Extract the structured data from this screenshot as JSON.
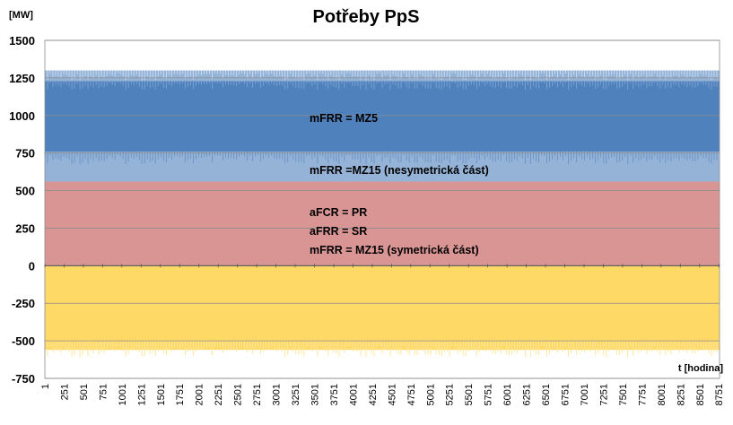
{
  "chart_data": {
    "type": "area",
    "title": "Potřeby PpS",
    "ylabel": "[MW]",
    "xlabel": "t [hodina]",
    "ylim": [
      -750,
      1500
    ],
    "yticks": [
      1500,
      1250,
      1000,
      750,
      500,
      250,
      0,
      -250,
      -500,
      -750
    ],
    "xlim": [
      1,
      8760
    ],
    "xticks": [
      "1",
      "251",
      "501",
      "751",
      "1001",
      "1251",
      "1501",
      "1751",
      "2001",
      "2251",
      "2501",
      "2751",
      "3001",
      "3251",
      "3501",
      "3751",
      "4001",
      "4251",
      "4501",
      "4751",
      "5001",
      "5251",
      "5501",
      "5751",
      "6001",
      "6251",
      "6501",
      "6751",
      "7001",
      "7251",
      "7501",
      "7751",
      "8001",
      "8251",
      "8501",
      "8751"
    ],
    "grid": true,
    "series": [
      {
        "key": "symetricka",
        "lower": 0,
        "upper": 560,
        "color": "#d99594"
      },
      {
        "key": "nesymetricka",
        "lower": 560,
        "upper": 760,
        "color": "#95b3d7"
      },
      {
        "key": "mz5",
        "lower": 760,
        "upper": 1230,
        "color": "#4f81bd"
      },
      {
        "key": "top_band",
        "lower": 1230,
        "upper": 1300,
        "color": "#95b3d7"
      },
      {
        "key": "negative",
        "lower": -560,
        "upper": 0,
        "color": "#ffd966"
      }
    ],
    "annotations": {
      "mz5": "mFRR = MZ5",
      "nesymetricka": "mFRR =MZ15 (nesymetrická část)",
      "afcr": "aFCR = PR",
      "afrr": "aFRR = SR",
      "mfrr_sym": "mFRR = MZ15 (symetrická část)"
    }
  }
}
